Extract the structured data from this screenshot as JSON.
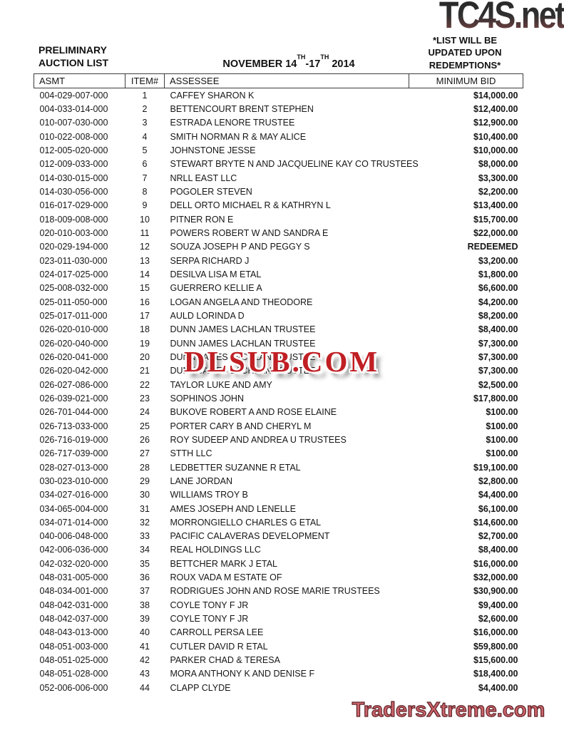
{
  "page": {
    "brand": "TC4S.net",
    "note_lines": [
      "*LIST WILL BE",
      "UPDATED UPON",
      "REDEMPTIONS*"
    ],
    "title_line1": "PRELIMINARY",
    "title_line2": "AUCTION LIST",
    "date": {
      "prefix": "NOVEMBER 14",
      "sup1": "TH",
      "mid": "-17",
      "sup2": "TH",
      "suffix": "2014"
    }
  },
  "table": {
    "headers": {
      "asmt": "ASMT",
      "item": "ITEM#",
      "assessee": "ASSESSEE",
      "bid": "MINIMUM BID"
    },
    "rows": [
      {
        "asmt": "004-029-007-000",
        "item": "1",
        "assessee": "CAFFEY SHARON K",
        "bid": "$14,000.00"
      },
      {
        "asmt": "004-033-014-000",
        "item": "2",
        "assessee": "BETTENCOURT BRENT STEPHEN",
        "bid": "$12,400.00"
      },
      {
        "asmt": "010-007-030-000",
        "item": "3",
        "assessee": "ESTRADA LENORE TRUSTEE",
        "bid": "$12,900.00"
      },
      {
        "asmt": "010-022-008-000",
        "item": "4",
        "assessee": "SMITH NORMAN R & MAY ALICE",
        "bid": "$10,400.00"
      },
      {
        "asmt": "012-005-020-000",
        "item": "5",
        "assessee": "JOHNSTONE JESSE",
        "bid": "$10,000.00"
      },
      {
        "asmt": "012-009-033-000",
        "item": "6",
        "assessee": "STEWART BRYTE N AND JACQUELINE KAY CO TRUSTEES",
        "bid": "$8,000.00"
      },
      {
        "asmt": "014-030-015-000",
        "item": "7",
        "assessee": "NRLL EAST LLC",
        "bid": "$3,300.00"
      },
      {
        "asmt": "014-030-056-000",
        "item": "8",
        "assessee": "POGOLER STEVEN",
        "bid": "$2,200.00"
      },
      {
        "asmt": "016-017-029-000",
        "item": "9",
        "assessee": "DELL ORTO MICHAEL R & KATHRYN L",
        "bid": "$13,400.00"
      },
      {
        "asmt": "018-009-008-000",
        "item": "10",
        "assessee": "PITNER RON E",
        "bid": "$15,700.00"
      },
      {
        "asmt": "020-010-003-000",
        "item": "11",
        "assessee": "POWERS ROBERT W AND SANDRA E",
        "bid": "$22,000.00"
      },
      {
        "asmt": "020-029-194-000",
        "item": "12",
        "assessee": "SOUZA JOSEPH P AND PEGGY S",
        "bid": "REDEEMED"
      },
      {
        "asmt": "023-011-030-000",
        "item": "13",
        "assessee": "SERPA RICHARD J",
        "bid": "$3,200.00"
      },
      {
        "asmt": "024-017-025-000",
        "item": "14",
        "assessee": "DESILVA LISA M ETAL",
        "bid": "$1,800.00"
      },
      {
        "asmt": "025-008-032-000",
        "item": "15",
        "assessee": "GUERRERO KELLIE A",
        "bid": "$6,600.00"
      },
      {
        "asmt": "025-011-050-000",
        "item": "16",
        "assessee": "LOGAN ANGELA AND THEODORE",
        "bid": "$4,200.00"
      },
      {
        "asmt": "025-017-011-000",
        "item": "17",
        "assessee": "AULD LORINDA D",
        "bid": "$8,200.00"
      },
      {
        "asmt": "026-020-010-000",
        "item": "18",
        "assessee": "DUNN JAMES LACHLAN TRUSTEE",
        "bid": "$8,400.00"
      },
      {
        "asmt": "026-020-040-000",
        "item": "19",
        "assessee": "DUNN JAMES LACHLAN TRUSTEE",
        "bid": "$7,300.00"
      },
      {
        "asmt": "026-020-041-000",
        "item": "20",
        "assessee": "DUNN JAMES LACHLAN TRUSTEE",
        "bid": "$7,300.00"
      },
      {
        "asmt": "026-020-042-000",
        "item": "21",
        "assessee": "DUNN JAMES LACHLAN TRUSTEE",
        "bid": "$7,300.00"
      },
      {
        "asmt": "026-027-086-000",
        "item": "22",
        "assessee": "TAYLOR LUKE AND AMY",
        "bid": "$2,500.00"
      },
      {
        "asmt": "026-039-021-000",
        "item": "23",
        "assessee": "SOPHINOS JOHN",
        "bid": "$17,800.00"
      },
      {
        "asmt": "026-701-044-000",
        "item": "24",
        "assessee": "BUKOVE ROBERT A AND ROSE ELAINE",
        "bid": "$100.00"
      },
      {
        "asmt": "026-713-033-000",
        "item": "25",
        "assessee": "PORTER CARY B AND CHERYL M",
        "bid": "$100.00"
      },
      {
        "asmt": "026-716-019-000",
        "item": "26",
        "assessee": "ROY SUDEEP AND ANDREA U TRUSTEES",
        "bid": "$100.00"
      },
      {
        "asmt": "026-717-039-000",
        "item": "27",
        "assessee": "STTH LLC",
        "bid": "$100.00"
      },
      {
        "asmt": "028-027-013-000",
        "item": "28",
        "assessee": "LEDBETTER SUZANNE R ETAL",
        "bid": "$19,100.00"
      },
      {
        "asmt": "030-023-010-000",
        "item": "29",
        "assessee": "LANE JORDAN",
        "bid": "$2,800.00"
      },
      {
        "asmt": "034-027-016-000",
        "item": "30",
        "assessee": "WILLIAMS TROY B",
        "bid": "$4,400.00"
      },
      {
        "asmt": "034-065-004-000",
        "item": "31",
        "assessee": "AMES JOSEPH AND LENELLE",
        "bid": "$6,100.00"
      },
      {
        "asmt": "034-071-014-000",
        "item": "32",
        "assessee": "MORRONGIELLO CHARLES G ETAL",
        "bid": "$14,600.00"
      },
      {
        "asmt": "040-006-048-000",
        "item": "33",
        "assessee": "PACIFIC CALAVERAS DEVELOPMENT",
        "bid": "$2,700.00"
      },
      {
        "asmt": "042-006-036-000",
        "item": "34",
        "assessee": "REAL HOLDINGS LLC",
        "bid": "$8,400.00"
      },
      {
        "asmt": "042-032-020-000",
        "item": "35",
        "assessee": "BETTCHER MARK J ETAL",
        "bid": "$16,000.00"
      },
      {
        "asmt": "048-031-005-000",
        "item": "36",
        "assessee": "ROUX VADA M ESTATE OF",
        "bid": "$32,000.00"
      },
      {
        "asmt": "048-034-001-000",
        "item": "37",
        "assessee": "RODRIGUES JOHN AND ROSE MARIE TRUSTEES",
        "bid": "$30,900.00"
      },
      {
        "asmt": "048-042-031-000",
        "item": "38",
        "assessee": "COYLE TONY F JR",
        "bid": "$9,400.00"
      },
      {
        "asmt": "048-042-037-000",
        "item": "39",
        "assessee": "COYLE TONY F JR",
        "bid": "$2,600.00"
      },
      {
        "asmt": "048-043-013-000",
        "item": "40",
        "assessee": "CARROLL PERSA LEE",
        "bid": "$16,000.00"
      },
      {
        "asmt": "048-051-003-000",
        "item": "41",
        "assessee": "CUTLER DAVID R ETAL",
        "bid": "$59,800.00"
      },
      {
        "asmt": "048-051-025-000",
        "item": "42",
        "assessee": "PARKER CHAD & TERESA",
        "bid": "$15,600.00"
      },
      {
        "asmt": "048-051-028-000",
        "item": "43",
        "assessee": "MORA ANTHONY K AND DENISE F",
        "bid": "$18,400.00"
      },
      {
        "asmt": "052-006-006-000",
        "item": "44",
        "assessee": "CLAPP CLYDE",
        "bid": "$4,400.00"
      }
    ]
  },
  "watermarks": {
    "center": "DLSUB.COM",
    "bottom": "TradersXtreme.com"
  },
  "colors": {
    "watermark_red": "#c01f24",
    "watermark_salmon": "#cb646b",
    "brand_gradient_top": "#262626",
    "brand_gradient_bottom": "#7c5252",
    "text": "#1b1b1b"
  }
}
